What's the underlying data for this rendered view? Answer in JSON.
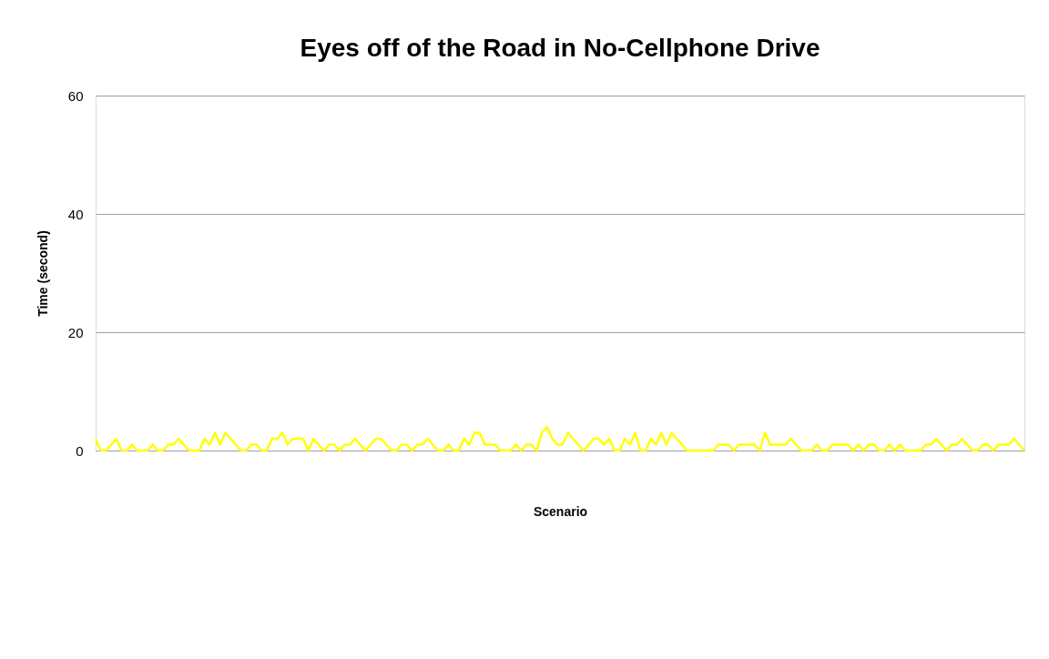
{
  "chart_data": {
    "type": "line",
    "title": "Eyes off of the Road in No-Cellphone Drive",
    "xlabel": "Scenario",
    "ylabel": "Time (second)",
    "categories": [
      null,
      null,
      null,
      null,
      null,
      null,
      null,
      null,
      null,
      null,
      null,
      null,
      null,
      null,
      null,
      null,
      null,
      null,
      null,
      null,
      null,
      null,
      null,
      null,
      null,
      null,
      null,
      null,
      null,
      null,
      null,
      null,
      null,
      null,
      null,
      null,
      null,
      null,
      null,
      null,
      null,
      null,
      null,
      null,
      null,
      null,
      null,
      null,
      null,
      null,
      null,
      null,
      null,
      null,
      null,
      null,
      null,
      null,
      null,
      null,
      null,
      null,
      null,
      null,
      null,
      null,
      null,
      null,
      null,
      null,
      null,
      null,
      null,
      null,
      null,
      null,
      null,
      null,
      null,
      null,
      null,
      null,
      null,
      null,
      null,
      null,
      null,
      null,
      null,
      null,
      null,
      null,
      null,
      null,
      null,
      null,
      null,
      null,
      null,
      null,
      null,
      null,
      null,
      null,
      null,
      null,
      null,
      null,
      null,
      null,
      null,
      null,
      null,
      null,
      null,
      null,
      null,
      null,
      null,
      null,
      null,
      null,
      null,
      null,
      null,
      null,
      null,
      null,
      null,
      null,
      null,
      null,
      null,
      null,
      null,
      null,
      null,
      null,
      null,
      null,
      null,
      null,
      null,
      null,
      null,
      null,
      null,
      null,
      null,
      null,
      null,
      null,
      null,
      null,
      null,
      null,
      null,
      null,
      null,
      null,
      null,
      null,
      null,
      null,
      null,
      null,
      null,
      null,
      null,
      null,
      null,
      null,
      null,
      null,
      null,
      null,
      null,
      null,
      null,
      null
    ],
    "series": [
      {
        "color": "#ffff00",
        "values": [
          2,
          0,
          0,
          1,
          2,
          0,
          0,
          1,
          0,
          0,
          0,
          1,
          0,
          0,
          1,
          1,
          2,
          1,
          0,
          0,
          0,
          2,
          1,
          3,
          1,
          3,
          2,
          1,
          0,
          0,
          1,
          1,
          0,
          0,
          2,
          2,
          3,
          1,
          2,
          2,
          2,
          0,
          2,
          1,
          0,
          1,
          1,
          0,
          1,
          1,
          2,
          1,
          0,
          1,
          2,
          2,
          1,
          0,
          0,
          1,
          1,
          0,
          1,
          1,
          2,
          1,
          0,
          0,
          1,
          0,
          0,
          2,
          1,
          3,
          3,
          1,
          1,
          1,
          0,
          0,
          0,
          1,
          0,
          1,
          1,
          0,
          3,
          4,
          2,
          1,
          1,
          3,
          2,
          1,
          0,
          1,
          2,
          2,
          1,
          2,
          0,
          0,
          2,
          1,
          3,
          0,
          0,
          2,
          1,
          3,
          1,
          3,
          2,
          1,
          0,
          0,
          0,
          0,
          0,
          0,
          1,
          1,
          1,
          0,
          1,
          1,
          1,
          1,
          0,
          3,
          1,
          1,
          1,
          1,
          2,
          1,
          0,
          0,
          0,
          1,
          0,
          0,
          1,
          1,
          1,
          1,
          0,
          1,
          0,
          1,
          1,
          0,
          0,
          1,
          0,
          1,
          0,
          0,
          0,
          0,
          1,
          1,
          2,
          1,
          0,
          1,
          1,
          2,
          1,
          0,
          0,
          1,
          1,
          0,
          1,
          1,
          1,
          2,
          1,
          0
        ]
      }
    ],
    "ylim": [
      0,
      60
    ],
    "yticks": [
      0,
      20,
      40,
      60
    ],
    "grid": "y",
    "legend": false,
    "marker": "none",
    "line_style": "solid",
    "tick_labels": "y"
  }
}
